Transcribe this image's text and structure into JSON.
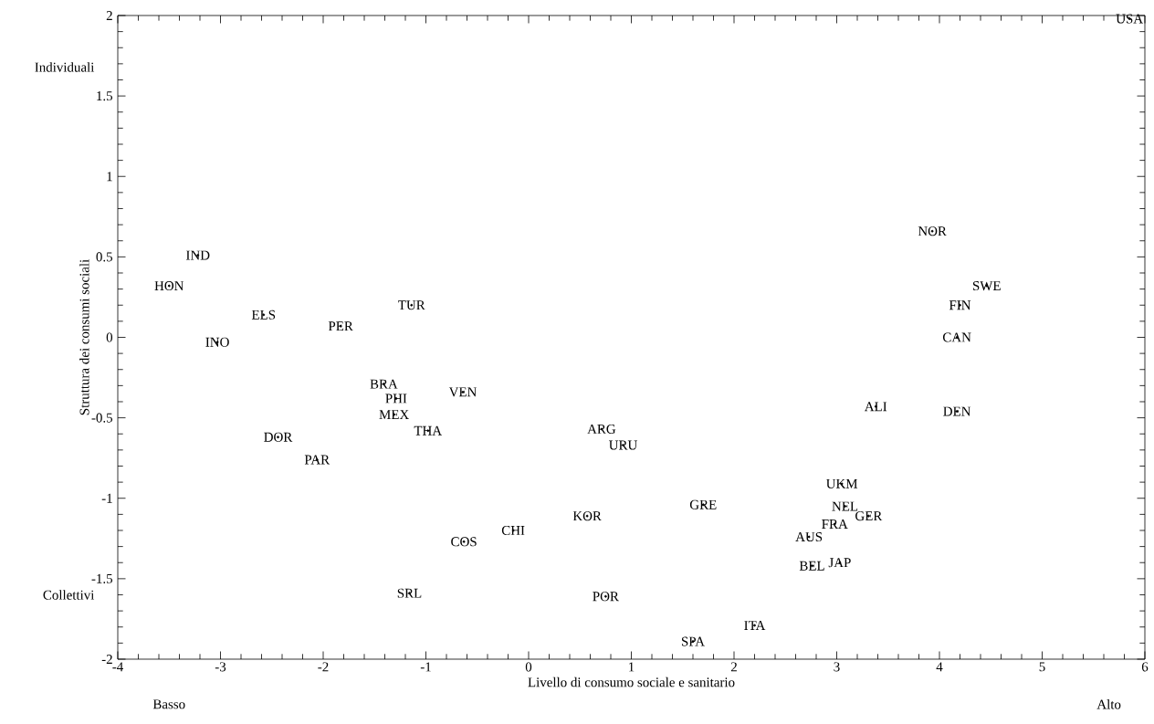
{
  "chart_data": {
    "type": "scatter",
    "xlabel": "Livello di consumo sociale e sanitario",
    "ylabel": "Struttura dei consumi sociali",
    "annotations": [
      "Individuali",
      "Collettivi",
      "Basso",
      "Alto"
    ],
    "x": [
      5.85,
      -3.22,
      -3.5,
      -2.58,
      -3.03,
      -1.83,
      -1.14,
      -1.41,
      -1.29,
      -1.31,
      -0.98,
      -0.64,
      -2.44,
      -2.06,
      0.71,
      0.92,
      0.57,
      -0.15,
      -0.63,
      -1.16,
      0.75,
      1.6,
      2.2,
      1.7,
      3.05,
      3.08,
      3.31,
      2.98,
      2.73,
      2.76,
      3.03,
      3.38,
      4.17,
      3.93,
      4.46,
      4.2,
      4.17
    ],
    "values": [
      1.98,
      0.51,
      0.32,
      0.14,
      -0.03,
      0.07,
      0.2,
      -0.29,
      -0.38,
      -0.48,
      -0.58,
      -0.34,
      -0.62,
      -0.76,
      -0.57,
      -0.67,
      -1.11,
      -1.2,
      -1.27,
      -1.59,
      -1.61,
      -1.89,
      -1.79,
      -1.04,
      -0.91,
      -1.05,
      -1.11,
      -1.16,
      -1.24,
      -1.42,
      -1.4,
      -0.43,
      -0.46,
      0.66,
      0.32,
      0.2,
      0.0
    ],
    "value_labels": [
      "USA",
      "IND",
      "HON",
      "ELS",
      "INO",
      "PER",
      "TUR",
      "BRA",
      "PHI",
      "MEX",
      "THA",
      "VEN",
      "DOR",
      "PAR",
      "ARG",
      "URU",
      "KOR",
      "CHI",
      "COS",
      "SRL",
      "POR",
      "SPA",
      "ITA",
      "GRE",
      "UKM",
      "NEL",
      "GER",
      "FRA",
      "AUS",
      "BEL",
      "JAP",
      "ALI",
      "DEN",
      "NOR",
      "SWE",
      "FIN",
      "CAN"
    ],
    "marker": "circle",
    "color": "#000000",
    "xlim": [
      -4,
      6
    ],
    "ylim": [
      -2,
      2
    ],
    "xticks": [
      -4,
      -3,
      -2,
      -1,
      0,
      1,
      2,
      3,
      4,
      5,
      6
    ],
    "yticks": [
      -2,
      -1.5,
      -1,
      -0.5,
      0,
      0.5,
      1,
      1.5,
      2
    ]
  }
}
